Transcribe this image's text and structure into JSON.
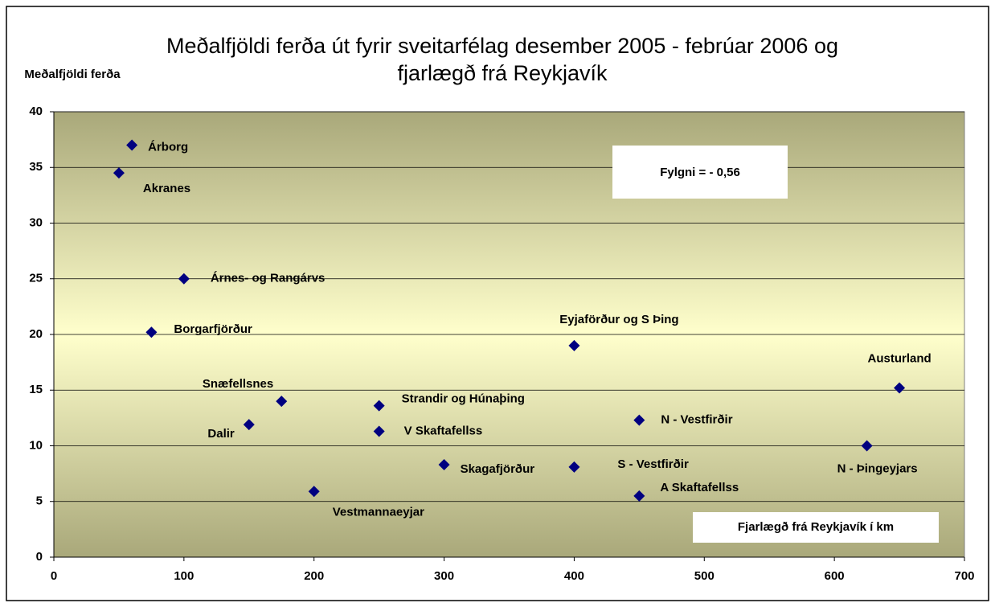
{
  "chart_data": {
    "type": "scatter",
    "title": "Meðalfjöldi ferða út fyrir sveitarfélag desember 2005 - febrúar 2006 og fjarlægð frá Reykjavík",
    "y_label": "Meðalfjöldi ferða",
    "x_label": "Fjarlægð frá Reykjavík í km",
    "annotation": "Fylgni = - 0,56",
    "series": [
      {
        "name": null,
        "color": "#000080",
        "labels": [
          "Árborg",
          "Akranes",
          "Árnes- og Rangárvs",
          "Borgarfjörður",
          "Snæfellsnes",
          "Dalir",
          "Strandir og Húnaþing",
          "V Skaftafellss",
          "Vestmannaeyjar",
          "Skagafjörður",
          "Eyjaförður og S Þing",
          "N - Vestfirðir",
          "S - Vestfirðir",
          "A Skaftafellss",
          "Austurland",
          "N - Þingeyjars"
        ],
        "x": [
          60,
          50,
          100,
          75,
          175,
          150,
          250,
          250,
          200,
          300,
          400,
          450,
          400,
          450,
          650,
          625
        ],
        "values": [
          37,
          34.5,
          25,
          20.2,
          14,
          11.9,
          13.6,
          11.3,
          5.9,
          8.3,
          19,
          12.3,
          8.1,
          5.5,
          15.2,
          10
        ]
      }
    ],
    "xlim": [
      0,
      700
    ],
    "xticks": [
      0,
      100,
      200,
      300,
      400,
      500,
      600,
      700
    ],
    "ylim": [
      0,
      40
    ],
    "yticks": [
      0,
      5,
      10,
      15,
      20,
      25,
      30,
      35,
      40
    ],
    "grid": true
  }
}
